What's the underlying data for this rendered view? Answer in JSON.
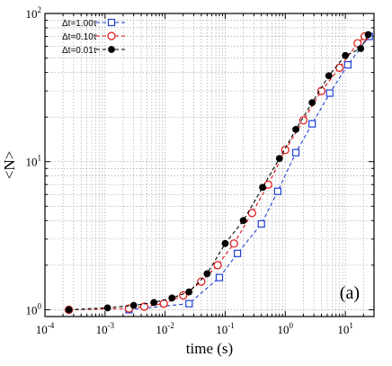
{
  "chart_data": {
    "type": "line",
    "xlabel": "time (s)",
    "ylabel": "<N>",
    "annotation": "(a)",
    "x_scale": "log",
    "y_scale": "log",
    "xlim": [
      0.0001,
      30
    ],
    "ylim": [
      0.9,
      100
    ],
    "grid": true,
    "legend_position": "top-left",
    "x_ticks": [
      {
        "value": 0.0001,
        "base": "10",
        "exp": "-4"
      },
      {
        "value": 0.001,
        "base": "10",
        "exp": "-3"
      },
      {
        "value": 0.01,
        "base": "10",
        "exp": "-2"
      },
      {
        "value": 0.1,
        "base": "10",
        "exp": "-1"
      },
      {
        "value": 1,
        "base": "10",
        "exp": "0"
      },
      {
        "value": 10,
        "base": "10",
        "exp": "1"
      }
    ],
    "y_ticks": [
      {
        "value": 1,
        "base": "10",
        "exp": "0"
      },
      {
        "value": 10,
        "base": "10",
        "exp": "1"
      },
      {
        "value": 100,
        "base": "10",
        "exp": "2"
      }
    ],
    "series": [
      {
        "name": "Δt=1.00τ",
        "color": "#1f3fd6",
        "marker": "open-square",
        "x": [
          0.0025,
          0.025,
          0.08,
          0.16,
          0.4,
          0.75,
          1.5,
          2.8,
          5.5,
          11,
          25
        ],
        "y": [
          1.0,
          1.1,
          1.65,
          2.4,
          3.8,
          6.3,
          11.5,
          18,
          29,
          45,
          70
        ]
      },
      {
        "name": "Δt=0.10τ",
        "color": "#e01010",
        "marker": "open-circle",
        "x": [
          0.00025,
          0.0025,
          0.0045,
          0.0095,
          0.02,
          0.04,
          0.075,
          0.14,
          0.28,
          0.52,
          1.0,
          2.0,
          4.0,
          8.0,
          16,
          21
        ],
        "y": [
          1.0,
          1.02,
          1.05,
          1.1,
          1.25,
          1.55,
          2.0,
          2.8,
          4.5,
          7.0,
          12,
          19,
          30,
          43,
          63,
          70
        ]
      },
      {
        "name": "Δt=0.01τ",
        "color": "#000000",
        "marker": "filled-circle",
        "x": [
          0.00025,
          0.0011,
          0.003,
          0.0065,
          0.013,
          0.025,
          0.05,
          0.1,
          0.2,
          0.42,
          0.8,
          1.5,
          2.8,
          5.3,
          10,
          18,
          24
        ],
        "y": [
          1.0,
          1.03,
          1.07,
          1.12,
          1.2,
          1.32,
          1.75,
          2.8,
          4.0,
          6.7,
          10.5,
          16.5,
          25,
          38,
          52,
          58,
          72
        ]
      }
    ]
  }
}
